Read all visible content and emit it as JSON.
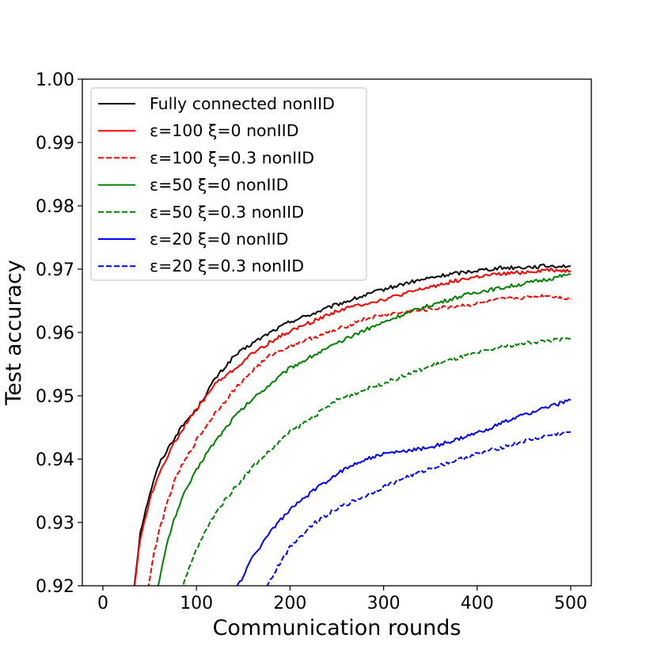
{
  "chart_data": {
    "type": "line",
    "xlabel": "Communication rounds",
    "ylabel": "Test accuracy",
    "xlim": [
      -22,
      522
    ],
    "ylim": [
      0.92,
      1.0
    ],
    "xticks": [
      0,
      100,
      200,
      300,
      400,
      500
    ],
    "yticks": [
      0.92,
      0.93,
      0.94,
      0.95,
      0.96,
      0.97,
      0.98,
      0.99,
      1.0
    ],
    "legend_position": "upper-left",
    "grid": false,
    "series": [
      {
        "name": "Fully connected nonIID",
        "color": "#000000",
        "dash": "solid",
        "x": [
          30,
          40,
          50,
          60,
          70,
          80,
          90,
          100,
          120,
          140,
          160,
          180,
          200,
          225,
          250,
          275,
          300,
          325,
          350,
          375,
          400,
          425,
          450,
          475,
          500
        ],
        "y": [
          0.9155,
          0.9285,
          0.9345,
          0.9392,
          0.9418,
          0.9442,
          0.9462,
          0.9478,
          0.9527,
          0.9562,
          0.9583,
          0.9601,
          0.9617,
          0.963,
          0.9644,
          0.9656,
          0.9668,
          0.9678,
          0.9686,
          0.9693,
          0.9698,
          0.9702,
          0.9703,
          0.9705,
          0.9705
        ]
      },
      {
        "name": "ε=100 ξ=0 nonIID",
        "color": "#ff0000",
        "dash": "solid",
        "x": [
          30,
          40,
          50,
          60,
          70,
          80,
          90,
          100,
          120,
          140,
          160,
          180,
          200,
          225,
          250,
          275,
          300,
          325,
          350,
          375,
          400,
          425,
          450,
          475,
          500
        ],
        "y": [
          0.9155,
          0.9275,
          0.9335,
          0.9378,
          0.9408,
          0.9435,
          0.9458,
          0.9478,
          0.9519,
          0.9541,
          0.9567,
          0.9586,
          0.9602,
          0.9618,
          0.9634,
          0.9644,
          0.9652,
          0.9662,
          0.9672,
          0.9681,
          0.9688,
          0.9692,
          0.9695,
          0.9699,
          0.9697
        ]
      },
      {
        "name": "ε=100 ξ=0.3 nonIID",
        "color": "#ff0000",
        "dash": "dashed",
        "x": [
          48,
          55,
          60,
          70,
          80,
          90,
          100,
          120,
          140,
          160,
          180,
          200,
          225,
          250,
          275,
          300,
          325,
          350,
          375,
          400,
          425,
          450,
          475,
          500
        ],
        "y": [
          0.9195,
          0.9255,
          0.9285,
          0.9338,
          0.9378,
          0.9403,
          0.943,
          0.9473,
          0.9509,
          0.954,
          0.9565,
          0.9579,
          0.9592,
          0.9604,
          0.9619,
          0.9628,
          0.9632,
          0.9637,
          0.9641,
          0.9645,
          0.9652,
          0.9655,
          0.9658,
          0.9653
        ]
      },
      {
        "name": "ε=50 ξ=0 nonIID",
        "color": "#008000",
        "dash": "solid",
        "x": [
          58,
          70,
          80,
          90,
          100,
          110,
          120,
          140,
          160,
          180,
          200,
          225,
          250,
          275,
          300,
          325,
          350,
          375,
          400,
          425,
          450,
          475,
          500
        ],
        "y": [
          0.9195,
          0.9275,
          0.9322,
          0.9355,
          0.9382,
          0.9408,
          0.9428,
          0.9466,
          0.9495,
          0.952,
          0.9544,
          0.9564,
          0.9582,
          0.9601,
          0.9616,
          0.9631,
          0.9643,
          0.9654,
          0.9664,
          0.967,
          0.9677,
          0.9684,
          0.9692
        ]
      },
      {
        "name": "ε=50 ξ=0.3 nonIID",
        "color": "#008000",
        "dash": "dashed",
        "x": [
          86,
          100,
          120,
          140,
          160,
          180,
          200,
          225,
          250,
          275,
          300,
          325,
          350,
          375,
          400,
          425,
          450,
          475,
          500
        ],
        "y": [
          0.9202,
          0.9258,
          0.9315,
          0.9353,
          0.9388,
          0.9415,
          0.9443,
          0.9467,
          0.9493,
          0.9507,
          0.952,
          0.9533,
          0.9547,
          0.9558,
          0.9567,
          0.9577,
          0.9583,
          0.9587,
          0.959
        ]
      },
      {
        "name": "ε=20 ξ=0 nonIID",
        "color": "#0000ff",
        "dash": "solid",
        "x": [
          143,
          150,
          160,
          180,
          200,
          225,
          250,
          275,
          300,
          325,
          350,
          375,
          400,
          425,
          450,
          475,
          500
        ],
        "y": [
          0.9198,
          0.9215,
          0.9245,
          0.9288,
          0.932,
          0.935,
          0.9377,
          0.9397,
          0.9408,
          0.9413,
          0.9419,
          0.9429,
          0.9441,
          0.9456,
          0.947,
          0.9482,
          0.9493
        ]
      },
      {
        "name": "ε=20 ξ=0.3 nonIID",
        "color": "#0000ff",
        "dash": "dashed",
        "x": [
          175,
          185,
          200,
          225,
          250,
          275,
          300,
          325,
          350,
          375,
          400,
          425,
          450,
          475,
          500
        ],
        "y": [
          0.9198,
          0.9225,
          0.9262,
          0.9298,
          0.9322,
          0.9338,
          0.9356,
          0.9372,
          0.9385,
          0.9397,
          0.9408,
          0.9418,
          0.9428,
          0.9437,
          0.9443
        ]
      }
    ]
  }
}
